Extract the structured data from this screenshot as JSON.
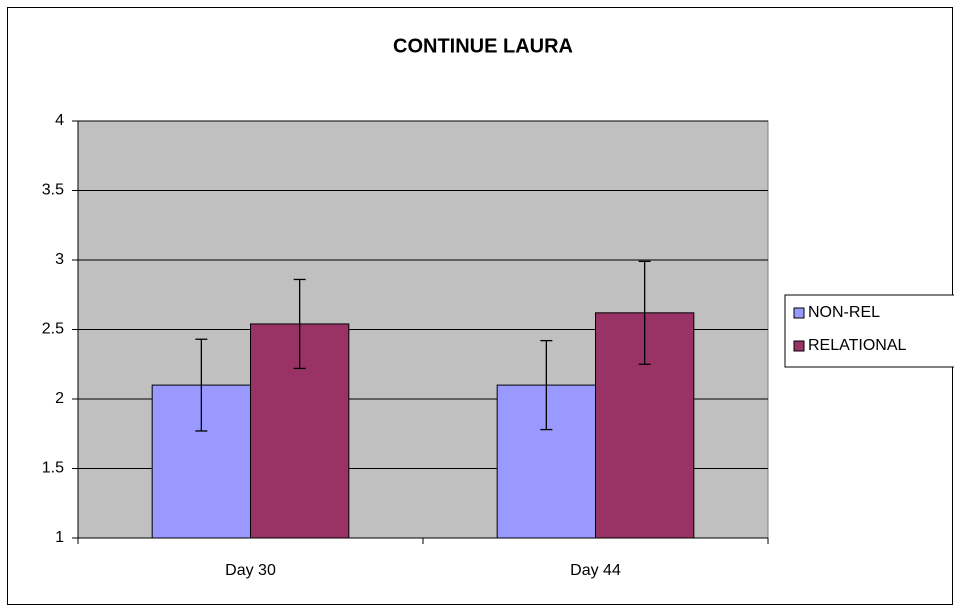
{
  "chart_data": {
    "type": "bar",
    "title": "CONTINUE LAURA",
    "categories": [
      "Day 30",
      "Day 44"
    ],
    "series": [
      {
        "name": "NON-REL",
        "color": "#9999ff",
        "values": [
          2.1,
          2.1
        ],
        "errors": [
          0.33,
          0.32
        ]
      },
      {
        "name": "RELATIONAL",
        "color": "#993366",
        "values": [
          2.54,
          2.62
        ],
        "errors": [
          0.32,
          0.37
        ]
      }
    ],
    "ylim": [
      1,
      4
    ],
    "yticks": [
      1,
      1.5,
      2,
      2.5,
      3,
      3.5,
      4
    ],
    "grid": true,
    "legend": "right",
    "plot_background": "#c0c0c0"
  }
}
